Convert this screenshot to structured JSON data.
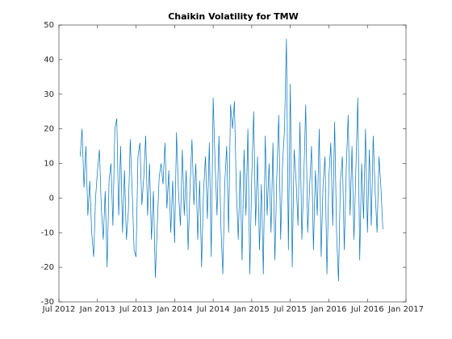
{
  "chart_data": {
    "type": "line",
    "title": "Chaikin Volatility for TMW",
    "x": [
      2012.775,
      2012.8,
      2012.825,
      2012.85,
      2012.875,
      2012.9,
      2012.925,
      2012.95,
      2012.975,
      2013,
      2013.025,
      2013.05,
      2013.075,
      2013.1,
      2013.125,
      2013.15,
      2013.175,
      2013.2,
      2013.225,
      2013.25,
      2013.275,
      2013.3,
      2013.325,
      2013.35,
      2013.375,
      2013.4,
      2013.425,
      2013.45,
      2013.475,
      2013.5,
      2013.525,
      2013.55,
      2013.575,
      2013.6,
      2013.625,
      2013.65,
      2013.675,
      2013.7,
      2013.725,
      2013.75,
      2013.775,
      2013.8,
      2013.825,
      2013.85,
      2013.875,
      2013.9,
      2013.925,
      2013.95,
      2013.975,
      2014,
      2014.025,
      2014.05,
      2014.075,
      2014.1,
      2014.125,
      2014.15,
      2014.175,
      2014.2,
      2014.225,
      2014.25,
      2014.275,
      2014.3,
      2014.325,
      2014.35,
      2014.375,
      2014.4,
      2014.425,
      2014.45,
      2014.475,
      2014.5,
      2014.525,
      2014.55,
      2014.575,
      2014.6,
      2014.625,
      2014.65,
      2014.675,
      2014.7,
      2014.725,
      2014.75,
      2014.775,
      2014.8,
      2014.825,
      2014.85,
      2014.875,
      2014.9,
      2014.925,
      2014.95,
      2014.975,
      2015,
      2015.025,
      2015.05,
      2015.075,
      2015.1,
      2015.125,
      2015.15,
      2015.175,
      2015.2,
      2015.225,
      2015.25,
      2015.275,
      2015.3,
      2015.325,
      2015.35,
      2015.375,
      2015.4,
      2015.425,
      2015.45,
      2015.475,
      2015.5,
      2015.525,
      2015.55,
      2015.575,
      2015.6,
      2015.625,
      2015.65,
      2015.675,
      2015.7,
      2015.725,
      2015.75,
      2015.775,
      2015.8,
      2015.825,
      2015.85,
      2015.875,
      2015.9,
      2015.925,
      2015.95,
      2015.975,
      2016,
      2016.025,
      2016.05,
      2016.075,
      2016.1,
      2016.125,
      2016.15,
      2016.175,
      2016.2,
      2016.225,
      2016.25,
      2016.275,
      2016.3,
      2016.325,
      2016.35,
      2016.375,
      2016.4,
      2016.425,
      2016.45,
      2016.475,
      2016.5,
      2016.525,
      2016.55,
      2016.575,
      2016.6,
      2016.625,
      2016.65,
      2016.675,
      2016.7
    ],
    "series": [
      {
        "color": "#0072bd",
        "values": [
          12,
          20,
          3,
          15,
          -5,
          5,
          -10,
          -17,
          0,
          8,
          14,
          -3,
          -12,
          2,
          -20,
          5,
          10,
          -8,
          20,
          23,
          -5,
          15,
          -10,
          8,
          -12,
          -4,
          17,
          2,
          -15,
          -17,
          12,
          16,
          -2,
          6,
          18,
          -5,
          10,
          -12,
          2,
          -23,
          -8,
          6,
          10,
          4,
          16,
          -3,
          8,
          -10,
          5,
          -13,
          19,
          2,
          -8,
          14,
          -5,
          8,
          -15,
          3,
          17,
          -2,
          10,
          -12,
          5,
          -20,
          2,
          12,
          -6,
          16,
          -17,
          29,
          10,
          -5,
          18,
          -8,
          -22,
          4,
          15,
          -10,
          27,
          20,
          28,
          3,
          -12,
          8,
          -18,
          14,
          -5,
          20,
          -22,
          6,
          25,
          -8,
          12,
          -15,
          4,
          -22,
          18,
          -5,
          10,
          -10,
          16,
          -18,
          6,
          24,
          -12,
          10,
          20,
          46,
          -15,
          33,
          -20,
          14,
          5,
          -8,
          22,
          -12,
          6,
          27,
          -10,
          3,
          15,
          -15,
          8,
          -5,
          20,
          -17,
          4,
          12,
          -22,
          6,
          16,
          -8,
          22,
          -10,
          -24,
          5,
          12,
          -15,
          8,
          24,
          -5,
          15,
          -12,
          8,
          29,
          -18,
          10,
          -6,
          20,
          -10,
          14,
          -8,
          18,
          2,
          -10,
          12,
          3,
          -9
        ]
      }
    ],
    "xlim": [
      2012.5,
      2017
    ],
    "xticks": [
      {
        "value": 2012.5,
        "label": "Jul 2012"
      },
      {
        "value": 2013,
        "label": "Jan 2013"
      },
      {
        "value": 2013.5,
        "label": "Jul 2013"
      },
      {
        "value": 2014,
        "label": "Jan 2014"
      },
      {
        "value": 2014.5,
        "label": "Jul 2014"
      },
      {
        "value": 2015,
        "label": "Jan 2015"
      },
      {
        "value": 2015.5,
        "label": "Jul 2015"
      },
      {
        "value": 2016,
        "label": "Jan 2016"
      },
      {
        "value": 2016.5,
        "label": "Jul 2016"
      },
      {
        "value": 2017,
        "label": "Jan 2017"
      }
    ],
    "ylim": [
      -30,
      50
    ],
    "yticks": [
      -30,
      -20,
      -10,
      0,
      10,
      20,
      30,
      40,
      50
    ]
  }
}
